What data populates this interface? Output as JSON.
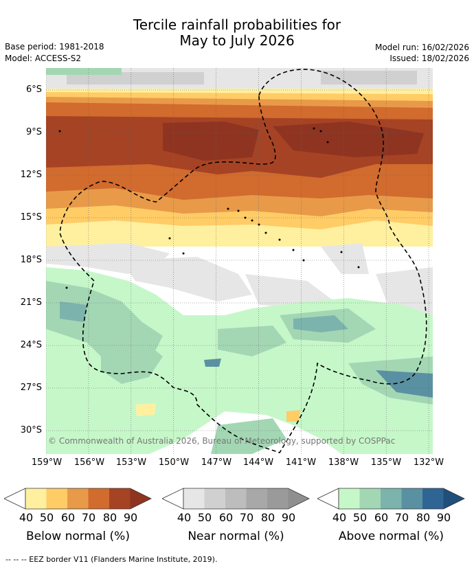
{
  "title": {
    "line1": "Tercile rainfall probabilities for",
    "line2": "May to July 2026"
  },
  "meta": {
    "base_period": "Base period: 1981-2018",
    "model": "Model: ACCESS-S2",
    "model_run": "Model run: 16/02/2026",
    "issued": "Issued: 18/02/2026"
  },
  "map": {
    "lat_labels": [
      "6°S",
      "9°S",
      "12°S",
      "15°S",
      "18°S",
      "21°S",
      "24°S",
      "27°S",
      "30°S"
    ],
    "lon_labels": [
      "159°W",
      "156°W",
      "153°W",
      "150°W",
      "147°W",
      "144°W",
      "141°W",
      "138°W",
      "135°W",
      "132°W"
    ],
    "copyright": "© Commonwealth of Australia 2026, Bureau of Meteorology, supported by COSPPac",
    "colors": {
      "below": [
        "#fff0a0",
        "#ffcc66",
        "#e89a48",
        "#d16b2e",
        "#a64324",
        "#8f3420"
      ],
      "near": [
        "#e6e6e6",
        "#d0d0d0",
        "#bdbdbd",
        "#a8a8a8",
        "#8f8f8f"
      ],
      "above": [
        "#c6f7c9",
        "#a3d7b4",
        "#7cb3ad",
        "#5a91a2",
        "#2f6594",
        "#1f4f7a"
      ]
    }
  },
  "colorbars": [
    {
      "title": "Below normal (%)",
      "ticks": [
        "40",
        "50",
        "60",
        "70",
        "80",
        "90"
      ]
    },
    {
      "title": "Near normal (%)",
      "ticks": [
        "40",
        "50",
        "60",
        "70",
        "80",
        "90"
      ]
    },
    {
      "title": "Above normal (%)",
      "ticks": [
        "40",
        "50",
        "60",
        "70",
        "80",
        "90"
      ]
    }
  ],
  "footer": "--  --  -- EEZ border V11 (Flanders Marine Institute, 2019)."
}
